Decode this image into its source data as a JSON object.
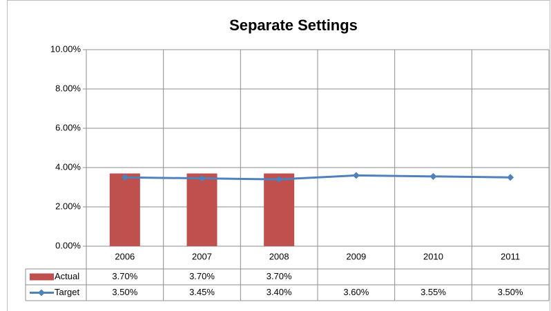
{
  "chart_data": {
    "type": "combo",
    "title": "Separate Settings",
    "categories": [
      "2006",
      "2007",
      "2008",
      "2009",
      "2010",
      "2011"
    ],
    "series": [
      {
        "name": "Actual",
        "type": "bar",
        "color": "#c0504d",
        "values": [
          3.7,
          3.7,
          3.7,
          null,
          null,
          null
        ],
        "value_labels": [
          "3.70%",
          "3.70%",
          "3.70%",
          null,
          null,
          null
        ]
      },
      {
        "name": "Target",
        "type": "line",
        "color": "#4f81bd",
        "values": [
          3.5,
          3.45,
          3.4,
          3.6,
          3.55,
          3.5
        ],
        "value_labels": [
          "3.50%",
          "3.45%",
          "3.40%",
          "3.60%",
          "3.55%",
          "3.50%"
        ]
      }
    ],
    "ylim": [
      0,
      10
    ],
    "yticks": [
      {
        "value": 0,
        "label": "0.00%"
      },
      {
        "value": 2,
        "label": "2.00%"
      },
      {
        "value": 4,
        "label": "4.00%"
      },
      {
        "value": 6,
        "label": "6.00%"
      },
      {
        "value": 8,
        "label": "8.00%"
      },
      {
        "value": 10,
        "label": "10.00%"
      }
    ],
    "grid": true,
    "data_table": true
  }
}
